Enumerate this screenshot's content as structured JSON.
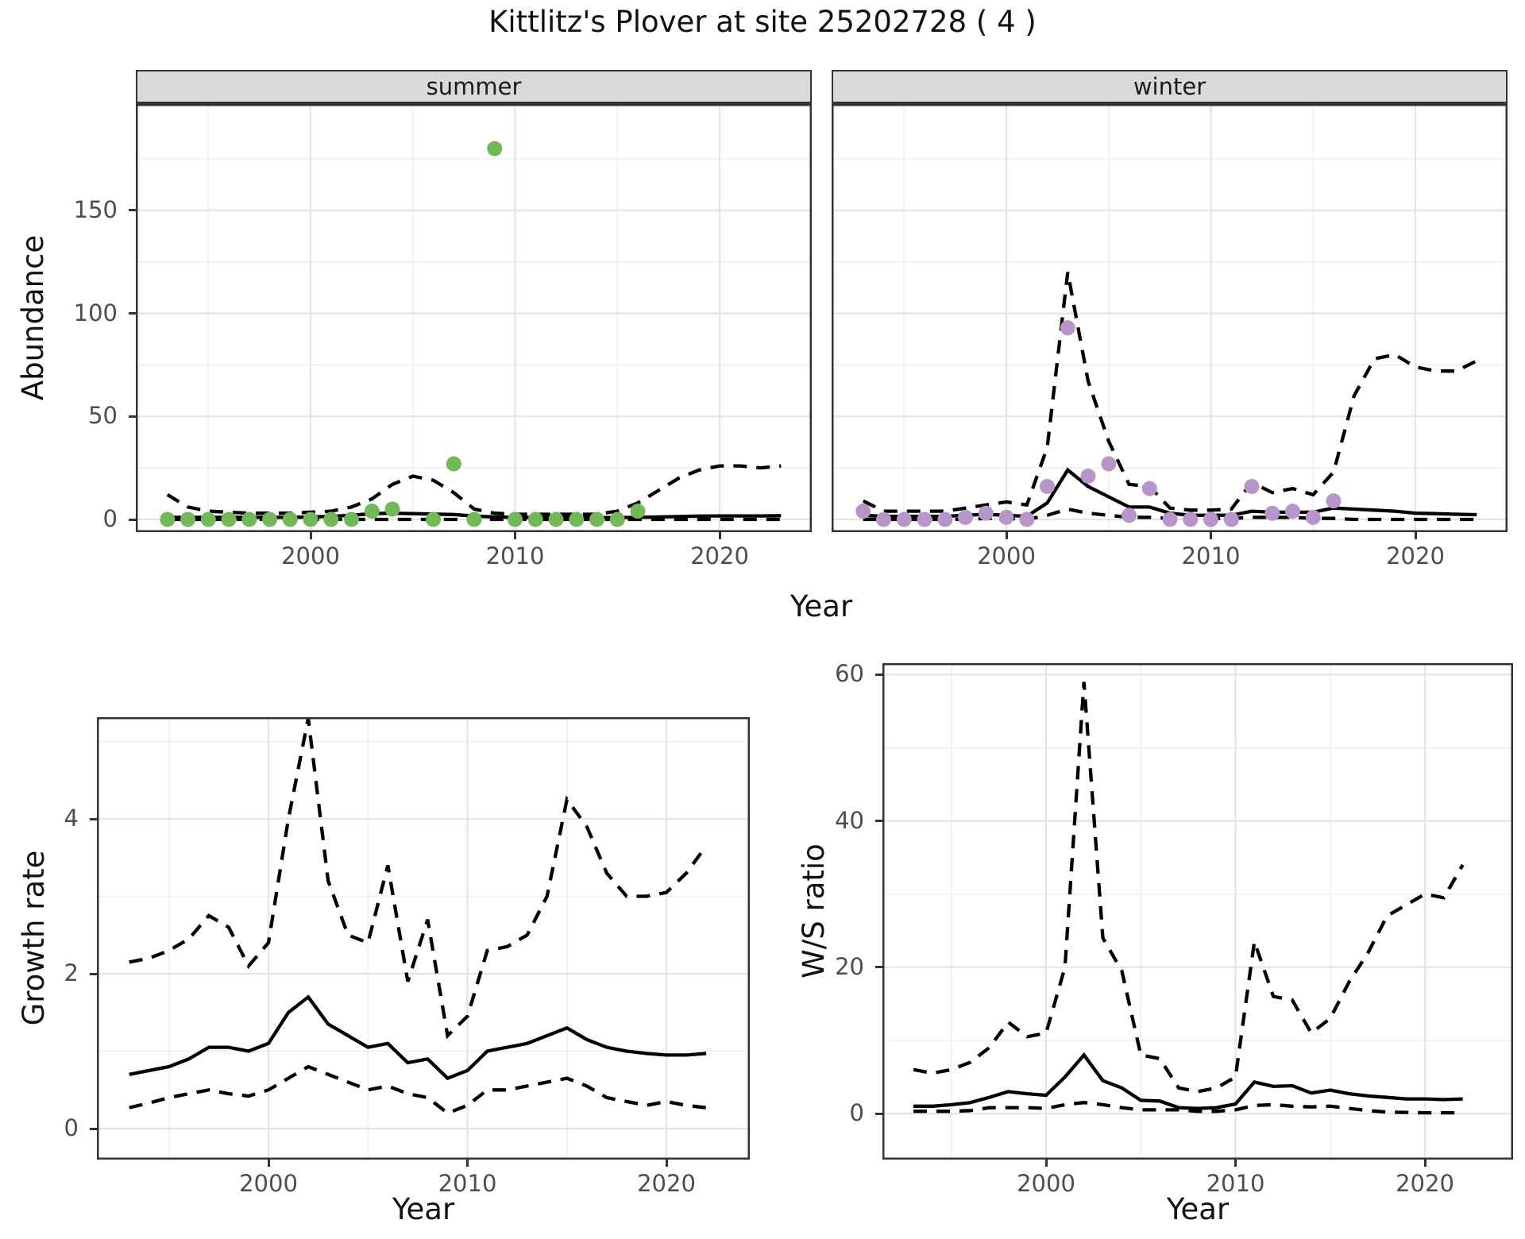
{
  "title": "Kittlitz's Plover at site 25202728 ( 4 )",
  "axis_labels": {
    "abundance": "Abundance",
    "year": "Year",
    "growth": "Growth rate",
    "ws": "W/S ratio"
  },
  "facets": {
    "summer": "summer",
    "winter": "winter"
  },
  "colors": {
    "summer_points": "#71b857",
    "winter_points": "#b795ca",
    "strip_fill": "#d9d9d9",
    "line": "#000000",
    "grid_major": "#e4e4e4",
    "grid_minor": "#f0f0f0",
    "tick_text": "#4d4d4d",
    "panel_border": "#333333"
  },
  "chart_data": [
    {
      "id": "abundance_summer",
      "type": "scatter",
      "title": "summer",
      "xlabel": "Year",
      "ylabel": "Abundance",
      "xlim": [
        1991.5,
        2024.5
      ],
      "ylim": [
        -6,
        195
      ],
      "xticks": [
        2000,
        2010,
        2020
      ],
      "yticks": [
        0,
        50,
        100,
        150
      ],
      "grid": true,
      "points": {
        "years": [
          1993,
          1994,
          1995,
          1996,
          1997,
          1998,
          1999,
          2000,
          2001,
          2002,
          2003,
          2004,
          2006,
          2007,
          2008,
          2009,
          2010,
          2011,
          2012,
          2013,
          2014,
          2015,
          2016
        ],
        "values": [
          0,
          0,
          0,
          0,
          0,
          0,
          0,
          0,
          0,
          0,
          4,
          5,
          0,
          27,
          0,
          180,
          0,
          0,
          0,
          0,
          0,
          0,
          4
        ]
      },
      "line_years": [
        1993,
        1994,
        1995,
        1996,
        1997,
        1998,
        1999,
        2000,
        2001,
        2002,
        2003,
        2004,
        2005,
        2006,
        2007,
        2008,
        2009,
        2010,
        2011,
        2012,
        2013,
        2014,
        2015,
        2016,
        2017,
        2018,
        2019,
        2020,
        2021,
        2022,
        2023
      ],
      "series": [
        {
          "name": "upper_ci",
          "style": "dashed",
          "values": [
            12,
            6,
            4,
            3.5,
            3,
            3,
            3,
            3.5,
            4,
            6,
            10,
            17,
            21,
            19,
            13,
            5,
            3,
            2.5,
            2.5,
            2.5,
            2.5,
            2.5,
            4,
            8,
            14,
            20,
            24,
            26,
            26,
            25,
            26
          ]
        },
        {
          "name": "lower_ci",
          "style": "dashed",
          "values": [
            0,
            0,
            0,
            0,
            0,
            0,
            0,
            0,
            0,
            0,
            0,
            0,
            0,
            0,
            0,
            0,
            0,
            0,
            0,
            0,
            0,
            0,
            0,
            0,
            0,
            0,
            0,
            0,
            0,
            0,
            0
          ]
        },
        {
          "name": "fit",
          "style": "solid",
          "values": [
            1,
            1,
            1,
            1,
            1,
            1,
            1,
            1.2,
            1.5,
            2,
            2.8,
            3,
            2.8,
            2.6,
            2.4,
            1.6,
            1.2,
            1,
            0.9,
            0.9,
            0.9,
            0.9,
            0.9,
            1,
            1.2,
            1.4,
            1.6,
            1.7,
            1.7,
            1.7,
            1.8
          ]
        }
      ]
    },
    {
      "id": "abundance_winter",
      "type": "scatter",
      "title": "winter",
      "xlabel": "Year",
      "ylabel": "Abundance",
      "xlim": [
        1991.5,
        2024.5
      ],
      "ylim": [
        -6,
        195
      ],
      "xticks": [
        2000,
        2010,
        2020
      ],
      "yticks": [
        0,
        50,
        100,
        150
      ],
      "grid": true,
      "points": {
        "years": [
          1993,
          1994,
          1995,
          1996,
          1997,
          1998,
          1999,
          2000,
          2001,
          2002,
          2003,
          2004,
          2005,
          2006,
          2007,
          2008,
          2009,
          2010,
          2011,
          2012,
          2013,
          2014,
          2015,
          2016
        ],
        "values": [
          4,
          0,
          0,
          0,
          0,
          1,
          3,
          1,
          0,
          16,
          93,
          21,
          27,
          2,
          15,
          0,
          0,
          0,
          0,
          16,
          3,
          4,
          1,
          9
        ]
      },
      "line_years": [
        1993,
        1994,
        1995,
        1996,
        1997,
        1998,
        1999,
        2000,
        2001,
        2002,
        2003,
        2004,
        2005,
        2006,
        2007,
        2008,
        2009,
        2010,
        2011,
        2012,
        2013,
        2014,
        2015,
        2016,
        2017,
        2018,
        2019,
        2020,
        2021,
        2022,
        2023
      ],
      "series": [
        {
          "name": "upper_ci",
          "style": "dashed",
          "values": [
            9,
            4,
            4,
            4,
            4,
            5.5,
            7,
            8.5,
            7,
            35,
            120,
            67,
            38,
            17,
            16,
            5.5,
            4.5,
            4.5,
            5,
            18,
            13,
            15,
            12,
            23,
            60,
            78,
            80,
            74,
            72,
            72,
            77
          ]
        },
        {
          "name": "lower_ci",
          "style": "dashed",
          "values": [
            0,
            0,
            0,
            0,
            0,
            0,
            0.5,
            0.5,
            0,
            2,
            5,
            3,
            2,
            1,
            1,
            0.5,
            0.5,
            0.5,
            0.5,
            1,
            1,
            1,
            0.5,
            0.5,
            0,
            0,
            0,
            0,
            0,
            0,
            0
          ]
        },
        {
          "name": "fit",
          "style": "solid",
          "values": [
            2,
            1.5,
            1.5,
            1.5,
            1.5,
            2,
            2.5,
            2,
            1.5,
            8,
            24,
            16,
            11,
            6,
            6,
            3,
            2,
            2,
            2,
            4,
            3.5,
            3.5,
            3.5,
            5.5,
            5,
            4.5,
            4,
            3,
            2.8,
            2.5,
            2.3
          ]
        }
      ]
    },
    {
      "id": "growth_rate",
      "type": "line",
      "title": "",
      "xlabel": "Year",
      "ylabel": "Growth rate",
      "xlim": [
        1991.4,
        2024.2
      ],
      "ylim": [
        -0.4,
        5.3
      ],
      "xticks": [
        2000,
        2010,
        2020
      ],
      "yticks": [
        0,
        2,
        4
      ],
      "grid": true,
      "line_years": [
        1993,
        1994,
        1995,
        1996,
        1997,
        1998,
        1999,
        2000,
        2001,
        2002,
        2003,
        2004,
        2005,
        2006,
        2007,
        2008,
        2009,
        2010,
        2011,
        2012,
        2013,
        2014,
        2015,
        2016,
        2017,
        2018,
        2019,
        2020,
        2021,
        2022
      ],
      "series": [
        {
          "name": "upper_ci",
          "style": "dashed",
          "values": [
            2.15,
            2.2,
            2.3,
            2.45,
            2.75,
            2.6,
            2.1,
            2.4,
            4.0,
            5.3,
            3.2,
            2.5,
            2.4,
            3.4,
            1.9,
            2.7,
            1.2,
            1.45,
            2.3,
            2.35,
            2.5,
            3.0,
            4.25,
            3.9,
            3.3,
            3.0,
            3.0,
            3.05,
            3.3,
            3.65
          ]
        },
        {
          "name": "lower_ci",
          "style": "dashed",
          "values": [
            0.27,
            0.33,
            0.4,
            0.45,
            0.5,
            0.45,
            0.42,
            0.5,
            0.65,
            0.8,
            0.7,
            0.6,
            0.5,
            0.55,
            0.45,
            0.4,
            0.2,
            0.3,
            0.5,
            0.5,
            0.55,
            0.6,
            0.65,
            0.55,
            0.4,
            0.35,
            0.3,
            0.35,
            0.3,
            0.27
          ]
        },
        {
          "name": "fit",
          "style": "solid",
          "values": [
            0.7,
            0.75,
            0.8,
            0.9,
            1.05,
            1.05,
            1.0,
            1.1,
            1.5,
            1.7,
            1.35,
            1.2,
            1.05,
            1.1,
            0.85,
            0.9,
            0.65,
            0.75,
            1.0,
            1.05,
            1.1,
            1.2,
            1.3,
            1.15,
            1.05,
            1.0,
            0.97,
            0.95,
            0.95,
            0.97
          ]
        }
      ]
    },
    {
      "id": "ws_ratio",
      "type": "line",
      "title": "",
      "xlabel": "Year",
      "ylabel": "W/S ratio",
      "xlim": [
        1991.4,
        2024.6
      ],
      "ylim": [
        -6.5,
        61.5
      ],
      "xticks": [
        2000,
        2010,
        2020
      ],
      "yticks": [
        0,
        20,
        40,
        60
      ],
      "grid": true,
      "line_years": [
        1993,
        1994,
        1995,
        1996,
        1997,
        1998,
        1999,
        2000,
        2001,
        2002,
        2003,
        2004,
        2005,
        2006,
        2007,
        2008,
        2009,
        2010,
        2011,
        2012,
        2013,
        2014,
        2015,
        2016,
        2017,
        2018,
        2019,
        2020,
        2021,
        2022
      ],
      "series": [
        {
          "name": "upper_ci",
          "style": "dashed",
          "values": [
            6,
            5.5,
            6,
            7,
            9,
            12.5,
            10.5,
            11,
            20,
            59,
            24,
            19.5,
            8,
            7.5,
            3.5,
            3,
            3.5,
            5,
            23.5,
            16,
            15.5,
            11,
            13,
            18,
            22,
            27,
            28.5,
            30,
            29.5,
            34
          ]
        },
        {
          "name": "lower_ci",
          "style": "dashed",
          "values": [
            0.3,
            0.3,
            0.3,
            0.4,
            0.8,
            0.8,
            0.8,
            0.7,
            1.2,
            1.5,
            1.2,
            0.8,
            0.5,
            0.5,
            0.5,
            0.3,
            0.3,
            0.5,
            1.1,
            1.2,
            1.0,
            0.9,
            1.0,
            0.7,
            0.4,
            0.2,
            0.15,
            0.1,
            0.1,
            0.1
          ]
        },
        {
          "name": "fit",
          "style": "solid",
          "values": [
            1,
            1,
            1.2,
            1.5,
            2.2,
            3,
            2.7,
            2.5,
            5,
            8,
            4.5,
            3.5,
            1.8,
            1.7,
            0.8,
            0.7,
            0.8,
            1.3,
            4.3,
            3.7,
            3.8,
            2.8,
            3.2,
            2.7,
            2.4,
            2.2,
            2,
            2,
            1.9,
            2
          ]
        }
      ]
    }
  ]
}
